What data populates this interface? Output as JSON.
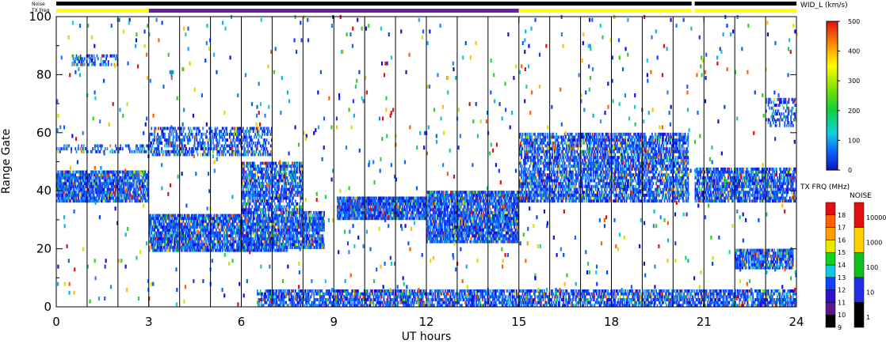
{
  "chart_data": {
    "type": "heatmap",
    "xlabel": "UT hours",
    "ylabel": "Range Gate",
    "xlim": [
      0,
      24
    ],
    "ylim": [
      0,
      100
    ],
    "x_ticks": [
      0,
      3,
      6,
      9,
      12,
      15,
      18,
      21,
      24
    ],
    "x_tick_labels": [
      "0",
      "3",
      "6",
      "9",
      "12",
      "15",
      "18",
      "21",
      "24"
    ],
    "y_ticks": [
      0,
      20,
      40,
      60,
      80,
      100
    ],
    "y_tick_labels": [
      "0",
      "20",
      "40",
      "60",
      "80",
      "100"
    ],
    "hourly_dividers": [
      1,
      2,
      3,
      4,
      5,
      6,
      7,
      8,
      9,
      10,
      11,
      12,
      13,
      14,
      15,
      16,
      17,
      18,
      19,
      20,
      21,
      22,
      23
    ],
    "status_bars": {
      "noise_label": "Noise",
      "txfreq_label": "TX Freq",
      "noise_segments": [
        {
          "start": 0,
          "end": 20.6,
          "color": "#000000"
        },
        {
          "start": 20.7,
          "end": 24,
          "color": "#000000"
        }
      ],
      "txfreq_segments": [
        {
          "start": 0,
          "end": 3.0,
          "color": "#ffff00"
        },
        {
          "start": 3.0,
          "end": 15.0,
          "color": "#6a1fa8"
        },
        {
          "start": 15.0,
          "end": 20.6,
          "color": "#ffff00"
        },
        {
          "start": 20.7,
          "end": 24,
          "color": "#ffff00"
        }
      ]
    },
    "width_colorbar": {
      "title": "WID_L (km/s)",
      "range": [
        0,
        500
      ],
      "tick_labels": [
        "0",
        "100",
        "200",
        "300",
        "400",
        "500"
      ]
    },
    "txfreq_colorbar": {
      "title": "TX FRQ (MHz)",
      "tick_labels": [
        "9",
        "10",
        "11",
        "12",
        "13",
        "14",
        "15",
        "16",
        "17",
        "18"
      ],
      "colors": [
        "#000000",
        "#5a1a8a",
        "#3010c8",
        "#1040ff",
        "#10c8e0",
        "#10d020",
        "#e8e800",
        "#ffa000",
        "#ff6000",
        "#e01010"
      ]
    },
    "noise_colorbar": {
      "title": "NOISE",
      "tick_labels": [
        "1",
        "10",
        "100",
        "1000",
        "10000"
      ],
      "colors": [
        "#000000",
        "#2030e0",
        "#10c020",
        "#ffd000",
        "#e01010"
      ]
    },
    "scatter_bands": [
      {
        "t0": 0.0,
        "t1": 3.0,
        "g0": 36,
        "g1": 47,
        "intensity": 0.85
      },
      {
        "t0": 0.0,
        "t1": 3.0,
        "g0": 53,
        "g1": 56,
        "intensity": 0.35
      },
      {
        "t0": 0.5,
        "t1": 2.0,
        "g0": 83,
        "g1": 87,
        "intensity": 0.4
      },
      {
        "t0": 3.0,
        "t1": 7.5,
        "g0": 19,
        "g1": 32,
        "intensity": 0.85
      },
      {
        "t0": 3.0,
        "t1": 7.0,
        "g0": 52,
        "g1": 62,
        "intensity": 0.5
      },
      {
        "t0": 6.0,
        "t1": 8.0,
        "g0": 32,
        "g1": 50,
        "intensity": 0.7
      },
      {
        "t0": 7.5,
        "t1": 8.7,
        "g0": 20,
        "g1": 33,
        "intensity": 0.8
      },
      {
        "t0": 9.1,
        "t1": 12.0,
        "g0": 30,
        "g1": 38,
        "intensity": 0.9
      },
      {
        "t0": 12.0,
        "t1": 15.0,
        "g0": 22,
        "g1": 40,
        "intensity": 0.85
      },
      {
        "t0": 15.0,
        "t1": 20.5,
        "g0": 36,
        "g1": 60,
        "intensity": 0.7
      },
      {
        "t0": 20.7,
        "t1": 24.0,
        "g0": 36,
        "g1": 48,
        "intensity": 0.75
      },
      {
        "t0": 22.0,
        "t1": 23.9,
        "g0": 13,
        "g1": 20,
        "intensity": 0.8
      },
      {
        "t0": 23.0,
        "t1": 24.0,
        "g0": 62,
        "g1": 72,
        "intensity": 0.4
      },
      {
        "t0": 6.5,
        "t1": 24.0,
        "g0": 0,
        "g1": 6,
        "intensity": 0.7
      }
    ]
  }
}
